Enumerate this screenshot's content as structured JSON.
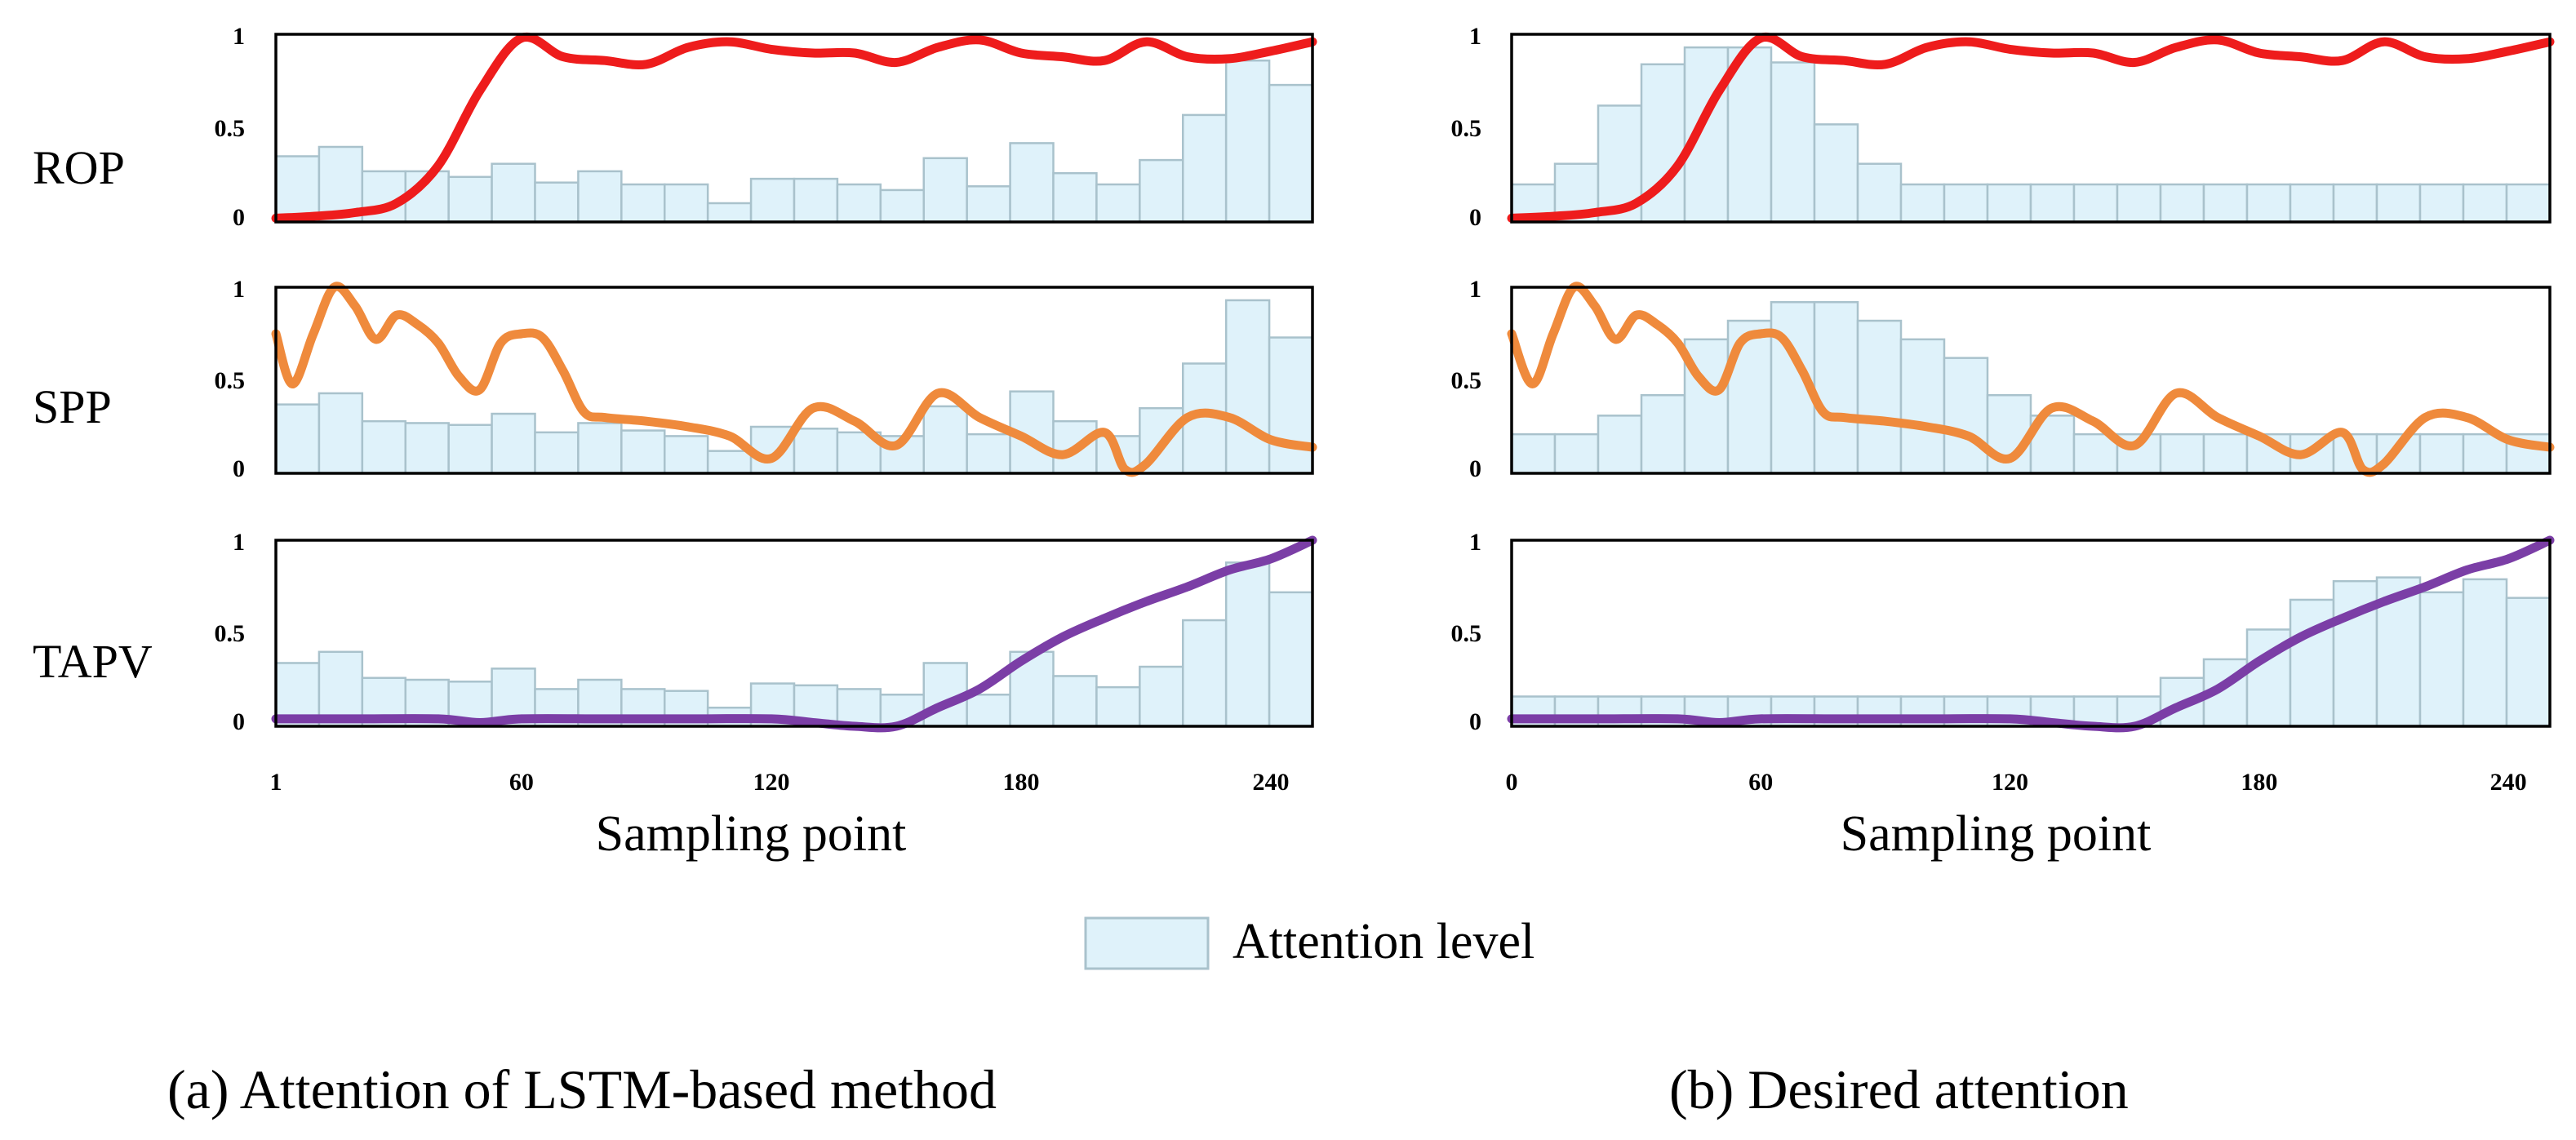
{
  "legend": {
    "label": "Attention level",
    "bar_fill": "#dff2fa",
    "bar_stroke": "#a9c2cc"
  },
  "captions": {
    "left": "(a) Attention of  LSTM-based method",
    "right": "(b) Desired attention"
  },
  "colors": {
    "ROP": "#ee1c1c",
    "SPP": "#ef8a3c",
    "TAPV": "#7b3ea6",
    "frame": "#000000"
  },
  "chart_data": [
    {
      "type": "line+bar",
      "panel": "a",
      "xlabel": "Sampling point",
      "xlim": [
        1,
        250
      ],
      "xticks": [
        1,
        60,
        120,
        180,
        240
      ],
      "ylim": [
        0,
        1
      ],
      "yticks": [
        "0",
        "0.5",
        "1"
      ],
      "rows": [
        {
          "name": "ROP",
          "attention": [
            0.35,
            0.4,
            0.27,
            0.27,
            0.24,
            0.31,
            0.21,
            0.27,
            0.2,
            0.2,
            0.1,
            0.23,
            0.23,
            0.2,
            0.17,
            0.34,
            0.19,
            0.42,
            0.26,
            0.2,
            0.33,
            0.57,
            0.86,
            0.73
          ],
          "x": [
            1,
            10,
            20,
            30,
            40,
            50,
            60,
            70,
            80,
            90,
            100,
            110,
            120,
            130,
            140,
            150,
            160,
            170,
            180,
            190,
            200,
            210,
            220,
            230,
            240,
            250
          ],
          "y": [
            0.02,
            0.03,
            0.05,
            0.1,
            0.3,
            0.7,
            0.98,
            0.88,
            0.86,
            0.84,
            0.93,
            0.96,
            0.92,
            0.9,
            0.9,
            0.85,
            0.93,
            0.97,
            0.9,
            0.88,
            0.86,
            0.96,
            0.88,
            0.87,
            0.91,
            0.96
          ]
        },
        {
          "name": "SPP",
          "attention": [
            0.37,
            0.43,
            0.28,
            0.27,
            0.26,
            0.32,
            0.22,
            0.27,
            0.23,
            0.2,
            0.12,
            0.25,
            0.24,
            0.22,
            0.2,
            0.36,
            0.21,
            0.44,
            0.28,
            0.2,
            0.35,
            0.59,
            0.93,
            0.73
          ],
          "x": [
            1,
            5,
            10,
            15,
            20,
            25,
            30,
            35,
            40,
            45,
            50,
            55,
            60,
            65,
            70,
            75,
            80,
            90,
            100,
            110,
            120,
            130,
            140,
            150,
            160,
            170,
            180,
            190,
            200,
            205,
            210,
            220,
            230,
            240,
            250
          ],
          "y": [
            0.75,
            0.48,
            0.75,
            1.0,
            0.9,
            0.72,
            0.85,
            0.8,
            0.7,
            0.52,
            0.45,
            0.7,
            0.75,
            0.73,
            0.55,
            0.33,
            0.3,
            0.28,
            0.25,
            0.2,
            0.08,
            0.35,
            0.28,
            0.15,
            0.43,
            0.3,
            0.2,
            0.1,
            0.22,
            0.02,
            0.05,
            0.3,
            0.3,
            0.18,
            0.14
          ]
        },
        {
          "name": "TAPV",
          "attention": [
            0.34,
            0.4,
            0.26,
            0.25,
            0.24,
            0.31,
            0.2,
            0.25,
            0.2,
            0.19,
            0.1,
            0.23,
            0.22,
            0.2,
            0.17,
            0.34,
            0.17,
            0.4,
            0.27,
            0.21,
            0.32,
            0.57,
            0.88,
            0.72
          ],
          "x": [
            1,
            20,
            40,
            50,
            60,
            80,
            100,
            120,
            130,
            140,
            150,
            160,
            170,
            180,
            190,
            200,
            210,
            220,
            230,
            240,
            250
          ],
          "y": [
            0.04,
            0.04,
            0.04,
            0.02,
            0.04,
            0.04,
            0.04,
            0.04,
            0.02,
            0.0,
            0.0,
            0.1,
            0.2,
            0.35,
            0.48,
            0.58,
            0.67,
            0.75,
            0.84,
            0.9,
            1.0
          ]
        }
      ]
    },
    {
      "type": "line+bar",
      "panel": "b",
      "xlabel": "Sampling point",
      "xlim": [
        0,
        250
      ],
      "xticks": [
        0,
        60,
        120,
        180,
        240
      ],
      "ylim": [
        0,
        1
      ],
      "yticks": [
        "0",
        "0.5",
        "1"
      ],
      "rows": [
        {
          "name": "ROP",
          "attention": [
            0.2,
            0.31,
            0.62,
            0.84,
            0.93,
            0.93,
            0.85,
            0.52,
            0.31,
            0.2,
            0.2,
            0.2,
            0.2,
            0.2,
            0.2,
            0.2,
            0.2,
            0.2,
            0.2,
            0.2,
            0.2,
            0.2,
            0.2,
            0.2
          ],
          "x": [
            0,
            10,
            20,
            30,
            40,
            50,
            60,
            70,
            80,
            90,
            100,
            110,
            120,
            130,
            140,
            150,
            160,
            170,
            180,
            190,
            200,
            210,
            220,
            230,
            240,
            250
          ],
          "y": [
            0.02,
            0.03,
            0.05,
            0.1,
            0.3,
            0.7,
            0.98,
            0.88,
            0.86,
            0.84,
            0.93,
            0.96,
            0.92,
            0.9,
            0.9,
            0.85,
            0.93,
            0.97,
            0.9,
            0.88,
            0.86,
            0.96,
            0.88,
            0.87,
            0.91,
            0.96
          ]
        },
        {
          "name": "SPP",
          "attention": [
            0.21,
            0.21,
            0.31,
            0.42,
            0.72,
            0.82,
            0.92,
            0.92,
            0.82,
            0.72,
            0.62,
            0.42,
            0.31,
            0.21,
            0.21,
            0.21,
            0.21,
            0.21,
            0.21,
            0.21,
            0.21,
            0.21,
            0.21,
            0.21
          ],
          "x": [
            0,
            5,
            10,
            15,
            20,
            25,
            30,
            35,
            40,
            45,
            50,
            55,
            60,
            65,
            70,
            75,
            80,
            90,
            100,
            110,
            120,
            130,
            140,
            150,
            160,
            170,
            180,
            190,
            200,
            205,
            210,
            220,
            230,
            240,
            250
          ],
          "y": [
            0.75,
            0.48,
            0.75,
            1.0,
            0.9,
            0.72,
            0.85,
            0.8,
            0.7,
            0.52,
            0.45,
            0.7,
            0.75,
            0.73,
            0.55,
            0.33,
            0.3,
            0.28,
            0.25,
            0.2,
            0.08,
            0.35,
            0.28,
            0.15,
            0.43,
            0.3,
            0.2,
            0.1,
            0.22,
            0.02,
            0.05,
            0.3,
            0.3,
            0.18,
            0.14
          ]
        },
        {
          "name": "TAPV",
          "attention": [
            0.16,
            0.16,
            0.16,
            0.16,
            0.16,
            0.16,
            0.16,
            0.16,
            0.16,
            0.16,
            0.16,
            0.16,
            0.16,
            0.16,
            0.16,
            0.26,
            0.36,
            0.52,
            0.68,
            0.78,
            0.8,
            0.72,
            0.79,
            0.69
          ],
          "x": [
            0,
            20,
            40,
            50,
            60,
            80,
            100,
            120,
            130,
            140,
            150,
            160,
            170,
            180,
            190,
            200,
            210,
            220,
            230,
            240,
            250
          ],
          "y": [
            0.04,
            0.04,
            0.04,
            0.02,
            0.04,
            0.04,
            0.04,
            0.04,
            0.02,
            0.0,
            0.0,
            0.1,
            0.2,
            0.35,
            0.48,
            0.58,
            0.67,
            0.75,
            0.84,
            0.9,
            1.0
          ]
        }
      ]
    }
  ]
}
